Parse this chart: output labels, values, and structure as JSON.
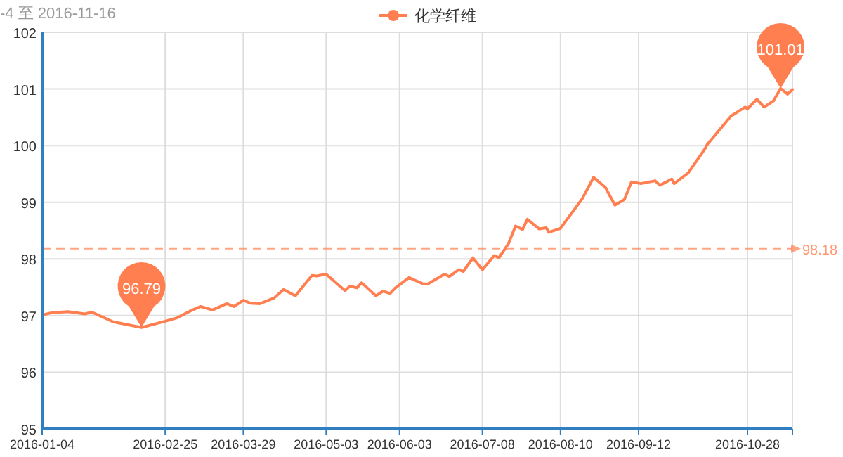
{
  "chart_data": {
    "type": "line",
    "title": "-4 至 2016-11-16",
    "legend": "top",
    "grid": true,
    "marker": "none",
    "line_style": "solid",
    "x": [
      "2016-01-04",
      "2016-01-08",
      "2016-01-15",
      "2016-01-22",
      "2016-01-25",
      "2016-02-03",
      "2016-02-15",
      "2016-02-25",
      "2016-03-01",
      "2016-03-07",
      "2016-03-11",
      "2016-03-16",
      "2016-03-22",
      "2016-03-25",
      "2016-03-29",
      "2016-04-01",
      "2016-04-05",
      "2016-04-11",
      "2016-04-15",
      "2016-04-20",
      "2016-04-27",
      "2016-04-29",
      "2016-05-03",
      "2016-05-11",
      "2016-05-13",
      "2016-05-16",
      "2016-05-18",
      "2016-05-24",
      "2016-05-27",
      "2016-05-30",
      "2016-06-01",
      "2016-06-07",
      "2016-06-13",
      "2016-06-15",
      "2016-06-22",
      "2016-06-24",
      "2016-06-28",
      "2016-06-30",
      "2016-07-04",
      "2016-07-08",
      "2016-07-13",
      "2016-07-15",
      "2016-07-19",
      "2016-07-22",
      "2016-07-25",
      "2016-07-27",
      "2016-08-01",
      "2016-08-04",
      "2016-08-05",
      "2016-08-10",
      "2016-08-19",
      "2016-08-24",
      "2016-08-29",
      "2016-09-02",
      "2016-09-06",
      "2016-09-09",
      "2016-09-13",
      "2016-09-19",
      "2016-09-21",
      "2016-09-26",
      "2016-09-27",
      "2016-10-03",
      "2016-10-10",
      "2016-10-11",
      "2016-10-17",
      "2016-10-21",
      "2016-10-27",
      "2016-10-28",
      "2016-11-01",
      "2016-11-04",
      "2016-11-08",
      "2016-11-11",
      "2016-11-14",
      "2016-11-16"
    ],
    "series": [
      {
        "name": "化学纤维",
        "color": "#ff7f50",
        "values": [
          97.01,
          97.05,
          97.07,
          97.03,
          97.06,
          96.89,
          96.79,
          96.9,
          96.96,
          97.09,
          97.16,
          97.1,
          97.21,
          97.16,
          97.27,
          97.22,
          97.21,
          97.31,
          97.46,
          97.35,
          97.71,
          97.7,
          97.73,
          97.44,
          97.52,
          97.49,
          97.58,
          97.35,
          97.43,
          97.39,
          97.48,
          97.67,
          97.56,
          97.56,
          97.73,
          97.69,
          97.81,
          97.78,
          98.02,
          97.81,
          98.06,
          98.02,
          98.27,
          98.58,
          98.52,
          98.7,
          98.53,
          98.55,
          98.47,
          98.54,
          99.05,
          99.44,
          99.26,
          98.95,
          99.05,
          99.36,
          99.33,
          99.38,
          99.3,
          99.41,
          99.33,
          99.52,
          99.94,
          100.02,
          100.32,
          100.52,
          100.68,
          100.65,
          100.82,
          100.68,
          100.79,
          101.01,
          100.91,
          100.99
        ]
      }
    ],
    "xlim": [
      "2016-01-04",
      "2016-11-16"
    ],
    "xticks": [
      "2016-01-04",
      "2016-02-25",
      "2016-03-29",
      "2016-05-03",
      "2016-06-03",
      "2016-07-08",
      "2016-08-10",
      "2016-09-12",
      "2016-10-28",
      {
        "value": "2016-11-16",
        "label": null
      }
    ],
    "ylim": [
      95,
      102
    ],
    "yticks": [
      95,
      96,
      97,
      98,
      99,
      100,
      101,
      102
    ],
    "ref_lines": [
      {
        "axis": "y",
        "value": 98.18,
        "label": "98.18",
        "color": "#ff7f50",
        "line_style": "dashed"
      }
    ],
    "annotations": [
      {
        "text": "96.79",
        "x": "2016-02-15",
        "y": 96.79
      },
      {
        "text": "101.01",
        "x": "2016-11-11",
        "y": 101.01
      }
    ]
  }
}
